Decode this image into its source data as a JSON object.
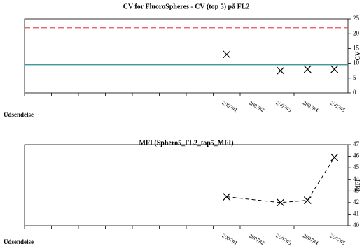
{
  "chart_data": [
    {
      "type": "scatter",
      "title": "CV for FluoroSpheres - CV (top 5) på FL2",
      "y_label": "CV",
      "x_label": "Udsendelse",
      "categories": [
        null,
        null,
        null,
        null,
        null,
        null,
        null,
        "2007#1",
        "2007#2",
        "2007#3",
        "2007#4",
        "2007#5"
      ],
      "values": [
        null,
        null,
        null,
        null,
        null,
        null,
        null,
        13,
        null,
        7.5,
        8,
        8
      ],
      "ylim": [
        0,
        25
      ],
      "yticks": [
        0,
        5,
        10,
        15,
        20,
        25
      ],
      "color": "#000000",
      "reference_lines": [
        {
          "value": 22,
          "color": "#e8505a",
          "dashed": true
        },
        {
          "value": 9.5,
          "color": "#2a8a8a",
          "dashed": false
        }
      ]
    },
    {
      "type": "line",
      "title": "MFI (Sphero5_FL2_top5_MFI)",
      "y_label": "MFI",
      "x_label": "Udsendelse",
      "categories": [
        null,
        null,
        null,
        null,
        null,
        null,
        null,
        "2007#1",
        "2007#2",
        "2007#3",
        "2007#4",
        "2007#5"
      ],
      "values": [
        null,
        null,
        null,
        null,
        null,
        null,
        null,
        42.5,
        null,
        42,
        42.2,
        45.9
      ],
      "ylim": [
        40,
        47
      ],
      "yticks": [
        40,
        41,
        42,
        43,
        44,
        45,
        46,
        47
      ],
      "color": "#000000",
      "dashed": true,
      "connect_gaps": true
    }
  ]
}
